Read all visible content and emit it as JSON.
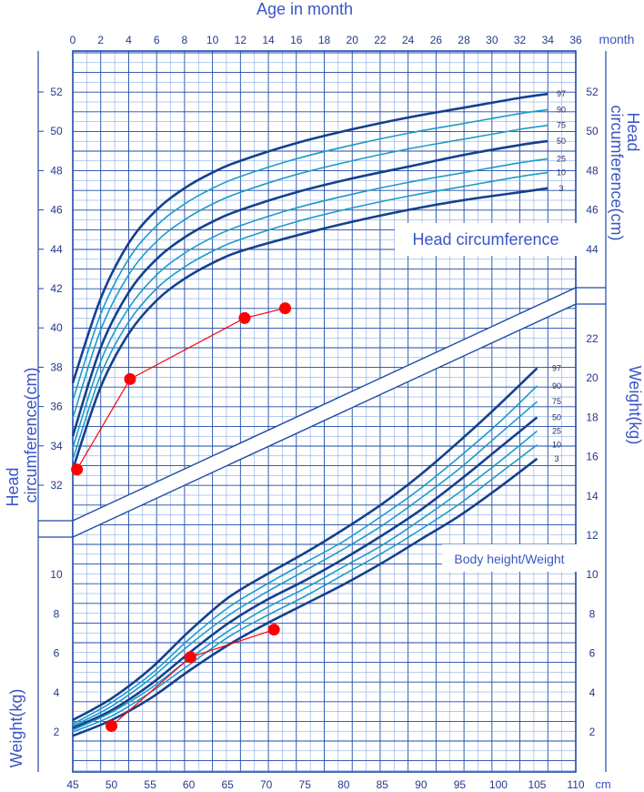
{
  "colors": {
    "grid_major": "#1e4aa8",
    "grid_minor": "#6f9ad9",
    "curve_dark": "#14408f",
    "curve_light": "#1d9ac9",
    "label": "#3a55c7",
    "points": "#ff0000"
  },
  "texts": {
    "top_title": "Age in month",
    "top_unit": "month",
    "head_right_label_1": "Head",
    "head_right_label_2": "circumference(cm)",
    "head_left_label_1": "Head",
    "head_left_label_2": "circumference(cm)",
    "weight_right_label": "Weight(kg)",
    "weight_left_label": "Weight(kg)",
    "head_box_label": "Head circumference",
    "weight_box_label": "Body height/Weight",
    "bottom_unit": "cm"
  },
  "chart_data": [
    {
      "type": "line",
      "title": "Head circumference",
      "xlabel": "Age in month",
      "ylabel": "Head circumference(cm)",
      "xlim": [
        0,
        36
      ],
      "ylim": [
        30,
        53
      ],
      "x_ticks": [
        0,
        2,
        4,
        6,
        8,
        10,
        12,
        14,
        16,
        18,
        20,
        22,
        24,
        26,
        28,
        30,
        32,
        34,
        36
      ],
      "y_ticks_upper": [
        44,
        46,
        48,
        50,
        52
      ],
      "y_ticks_left": [
        32,
        34,
        36,
        38,
        40,
        42,
        44,
        46,
        48,
        50,
        52
      ],
      "y_ticks_right": [
        44,
        46,
        48,
        50,
        52
      ],
      "x_samples": [
        0,
        2,
        4,
        6,
        8,
        10,
        12,
        16,
        20,
        24,
        28,
        32,
        34
      ],
      "series": [
        {
          "name": "97",
          "values": [
            37.2,
            41.5,
            44.3,
            46.0,
            47.1,
            47.9,
            48.5,
            49.4,
            50.1,
            50.7,
            51.2,
            51.7,
            51.9
          ]
        },
        {
          "name": "90",
          "values": [
            36.3,
            40.7,
            43.5,
            45.2,
            46.3,
            47.1,
            47.7,
            48.6,
            49.3,
            49.9,
            50.4,
            50.9,
            51.1
          ]
        },
        {
          "name": "75",
          "values": [
            35.4,
            39.9,
            42.7,
            44.4,
            45.5,
            46.3,
            46.9,
            47.8,
            48.5,
            49.1,
            49.6,
            50.1,
            50.3
          ]
        },
        {
          "name": "50",
          "values": [
            34.5,
            39.0,
            41.8,
            43.5,
            44.6,
            45.4,
            46.0,
            46.9,
            47.6,
            48.2,
            48.8,
            49.3,
            49.5
          ]
        },
        {
          "name": "25",
          "values": [
            33.9,
            38.3,
            41.0,
            42.7,
            43.8,
            44.6,
            45.2,
            46.1,
            46.8,
            47.4,
            47.9,
            48.4,
            48.6
          ]
        },
        {
          "name": "10",
          "values": [
            33.3,
            37.6,
            40.3,
            42.0,
            43.1,
            43.9,
            44.5,
            45.4,
            46.1,
            46.7,
            47.2,
            47.7,
            47.9
          ]
        },
        {
          "name": "3",
          "values": [
            32.8,
            37.0,
            39.7,
            41.4,
            42.5,
            43.3,
            43.9,
            44.7,
            45.4,
            46.0,
            46.5,
            46.9,
            47.1
          ]
        }
      ],
      "measurements": {
        "x": [
          0.3,
          4.1,
          12.3,
          15.2
        ],
        "y": [
          32.8,
          37.4,
          40.5,
          41.0
        ]
      }
    },
    {
      "type": "line",
      "title": "Body height/Weight",
      "xlabel": "Body height (cm)",
      "ylabel": "Weight(kg)",
      "xlim": [
        45,
        110
      ],
      "ylim": [
        1,
        24
      ],
      "x_ticks": [
        45,
        50,
        55,
        60,
        65,
        70,
        75,
        80,
        85,
        90,
        95,
        100,
        105,
        110
      ],
      "y_ticks_left": [
        2,
        4,
        6,
        8,
        10
      ],
      "y_ticks_right": [
        2,
        4,
        6,
        8,
        10,
        12,
        14,
        16,
        18,
        20,
        22
      ],
      "x_samples": [
        45,
        50,
        55,
        60,
        65,
        70,
        75,
        80,
        85,
        90,
        95,
        100,
        105
      ],
      "series": [
        {
          "name": "97",
          "values": [
            2.6,
            3.7,
            5.2,
            7.1,
            8.8,
            10.0,
            11.1,
            12.3,
            13.6,
            15.1,
            16.8,
            18.6,
            20.5
          ]
        },
        {
          "name": "90",
          "values": [
            2.4,
            3.5,
            4.9,
            6.7,
            8.3,
            9.5,
            10.6,
            11.7,
            13.0,
            14.4,
            16.0,
            17.7,
            19.6
          ]
        },
        {
          "name": "75",
          "values": [
            2.3,
            3.3,
            4.7,
            6.4,
            7.9,
            9.1,
            10.2,
            11.3,
            12.5,
            13.9,
            15.4,
            17.1,
            18.8
          ]
        },
        {
          "name": "50",
          "values": [
            2.2,
            3.1,
            4.4,
            6.0,
            7.5,
            8.7,
            9.7,
            10.8,
            12.0,
            13.3,
            14.8,
            16.4,
            18.0
          ]
        },
        {
          "name": "25",
          "values": [
            2.1,
            3.0,
            4.2,
            5.7,
            7.1,
            8.3,
            9.3,
            10.4,
            11.5,
            12.8,
            14.2,
            15.7,
            17.3
          ]
        },
        {
          "name": "10",
          "values": [
            2.0,
            2.8,
            4.0,
            5.4,
            6.8,
            7.9,
            8.9,
            10.0,
            11.1,
            12.3,
            13.6,
            15.1,
            16.6
          ]
        },
        {
          "name": "3",
          "values": [
            1.8,
            2.6,
            3.7,
            5.1,
            6.4,
            7.5,
            8.5,
            9.5,
            10.6,
            11.8,
            13.0,
            14.4,
            15.9
          ]
        }
      ],
      "measurements": {
        "x": [
          50.0,
          60.2,
          71.0
        ],
        "y": [
          2.3,
          5.8,
          7.2
        ]
      }
    }
  ]
}
